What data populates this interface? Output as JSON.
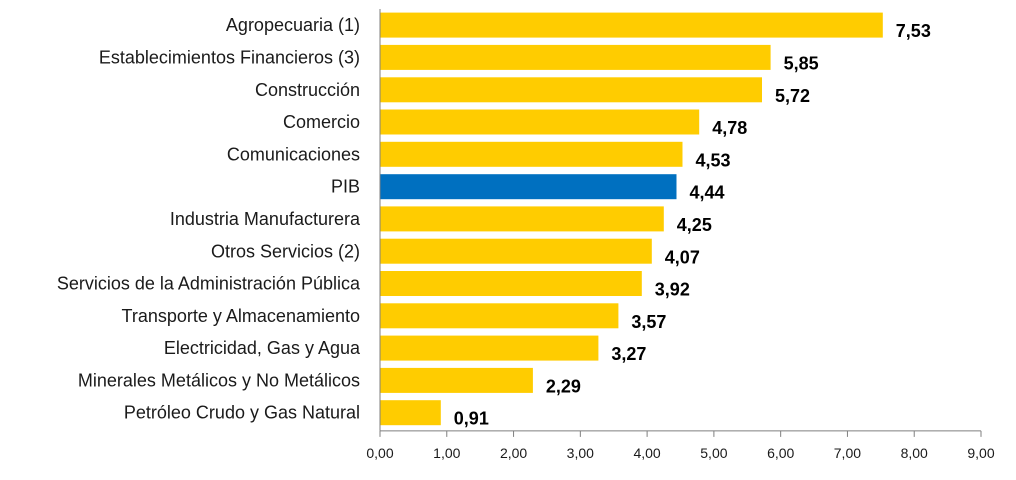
{
  "chart_data": {
    "type": "bar",
    "orientation": "horizontal",
    "title": "",
    "xlabel": "",
    "ylabel": "",
    "categories": [
      "Agropecuaria (1)",
      "Establecimientos Financieros (3)",
      "Construcción",
      "Comercio",
      "Comunicaciones",
      "PIB",
      "Industria Manufacturera",
      "Otros Servicios (2)",
      "Servicios de la Administración Pública",
      "Transporte y Almacenamiento",
      "Electricidad, Gas y Agua",
      "Minerales Metálicos y No Metálicos",
      "Petróleo Crudo y Gas Natural"
    ],
    "values": [
      7.53,
      5.85,
      5.72,
      4.78,
      4.53,
      4.44,
      4.25,
      4.07,
      3.92,
      3.57,
      3.27,
      2.29,
      0.91
    ],
    "value_labels": [
      "7,53",
      "5,85",
      "5,72",
      "4,78",
      "4,53",
      "4,44",
      "4,25",
      "4,07",
      "3,92",
      "3,57",
      "3,27",
      "2,29",
      "0,91"
    ],
    "xlim": [
      0,
      9
    ],
    "xticks": [
      0,
      1,
      2,
      3,
      4,
      5,
      6,
      7,
      8,
      9
    ],
    "xtick_labels": [
      "0,00",
      "1,00",
      "2,00",
      "3,00",
      "4,00",
      "5,00",
      "6,00",
      "7,00",
      "8,00",
      "9,00"
    ],
    "grid": false,
    "legend": "none",
    "colors": {
      "bar": "#FFCC00",
      "highlight": "#0070C0",
      "axis": "#7F7F7F"
    },
    "highlight_category": "PIB"
  }
}
